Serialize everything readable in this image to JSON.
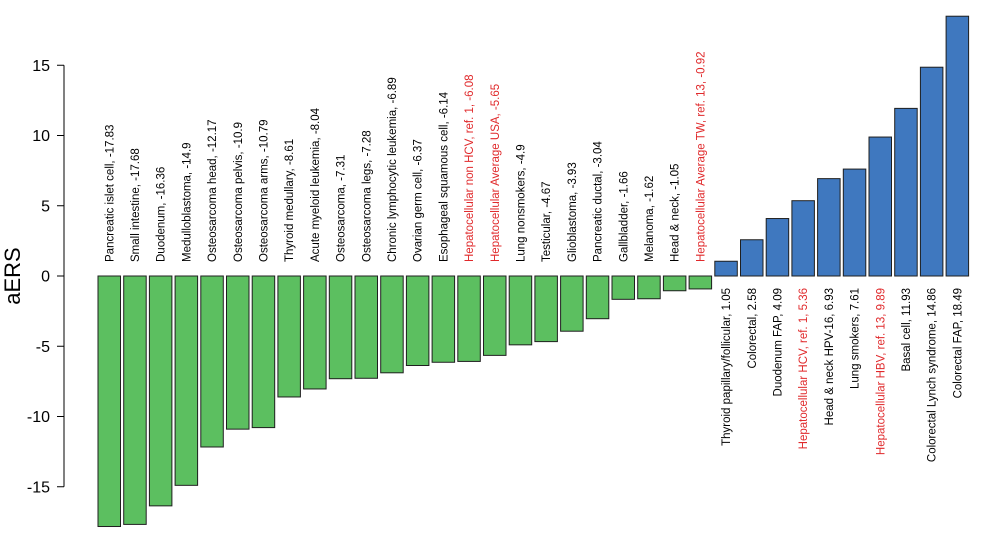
{
  "chart_data": {
    "type": "bar",
    "ylabel": "aERS",
    "ylim": [
      -18,
      18.5
    ],
    "yticks": [
      -15,
      -10,
      -5,
      0,
      5,
      10,
      15
    ],
    "grid": false,
    "colors": {
      "negative": "#5cbf60",
      "positive": "#3f78bf",
      "bar_stroke": "#1f1f1f",
      "highlight_text": "#e0292b",
      "normal_text": "#000000"
    },
    "bars": [
      {
        "label": "Pancreatic islet cell, -17.83",
        "value": -17.83,
        "highlight": false
      },
      {
        "label": "Small intestine, -17.68",
        "value": -17.68,
        "highlight": false
      },
      {
        "label": "Duodenum, -16.36",
        "value": -16.36,
        "highlight": false
      },
      {
        "label": "Medulloblastoma, -14.9",
        "value": -14.9,
        "highlight": false
      },
      {
        "label": "Osteosarcoma head, -12.17",
        "value": -12.17,
        "highlight": false
      },
      {
        "label": "Osteosarcoma pelvis, -10.9",
        "value": -10.9,
        "highlight": false
      },
      {
        "label": "Osteosarcoma arms, -10.79",
        "value": -10.79,
        "highlight": false
      },
      {
        "label": "Thyroid medullary, -8.61",
        "value": -8.61,
        "highlight": false
      },
      {
        "label": "Acute myeloid leukemia, -8.04",
        "value": -8.04,
        "highlight": false
      },
      {
        "label": "Osteosarcoma, -7.31",
        "value": -7.31,
        "highlight": false
      },
      {
        "label": "Osteosarcoma legs, -7.28",
        "value": -7.28,
        "highlight": false
      },
      {
        "label": "Chronic lymphocytic leukemia, -6.89",
        "value": -6.89,
        "highlight": false
      },
      {
        "label": "Ovarian germ cell, -6.37",
        "value": -6.37,
        "highlight": false
      },
      {
        "label": "Esophageal squamous cell, -6.14",
        "value": -6.14,
        "highlight": false
      },
      {
        "label": "Hepatocellular non HCV, ref. 1, -6.08",
        "value": -6.08,
        "highlight": true
      },
      {
        "label": "Hepatocellular Average USA, -5.65",
        "value": -5.65,
        "highlight": true
      },
      {
        "label": "Lung nonsmokers, -4.9",
        "value": -4.9,
        "highlight": false
      },
      {
        "label": "Testicular, -4.67",
        "value": -4.67,
        "highlight": false
      },
      {
        "label": "Glioblastoma, -3.93",
        "value": -3.93,
        "highlight": false
      },
      {
        "label": "Pancreatic ductal, -3.04",
        "value": -3.04,
        "highlight": false
      },
      {
        "label": "Gallbladder, -1.66",
        "value": -1.66,
        "highlight": false
      },
      {
        "label": "Melanoma, -1.62",
        "value": -1.62,
        "highlight": false
      },
      {
        "label": "Head & neck, -1.05",
        "value": -1.05,
        "highlight": false
      },
      {
        "label": "Hepatocellular Average TW, ref. 13, -0.92",
        "value": -0.92,
        "highlight": true
      },
      {
        "label": "Thyroid papillary/follicular, 1.05",
        "value": 1.05,
        "highlight": false
      },
      {
        "label": "Colorectal, 2.58",
        "value": 2.58,
        "highlight": false
      },
      {
        "label": "Duodenum FAP, 4.09",
        "value": 4.09,
        "highlight": false
      },
      {
        "label": "Hepatocellular HCV, ref. 1, 5.36",
        "value": 5.36,
        "highlight": true
      },
      {
        "label": "Head & neck HPV-16, 6.93",
        "value": 6.93,
        "highlight": false
      },
      {
        "label": "Lung smokers, 7.61",
        "value": 7.61,
        "highlight": false
      },
      {
        "label": "Hepatocellular HBV, ref. 13, 9.89",
        "value": 9.89,
        "highlight": true
      },
      {
        "label": "Basal cell, 11.93",
        "value": 11.93,
        "highlight": false
      },
      {
        "label": "Colorectal Lynch syndrome, 14.86",
        "value": 14.86,
        "highlight": false
      },
      {
        "label": "Colorectal FAP, 18.49",
        "value": 18.49,
        "highlight": false
      }
    ]
  }
}
